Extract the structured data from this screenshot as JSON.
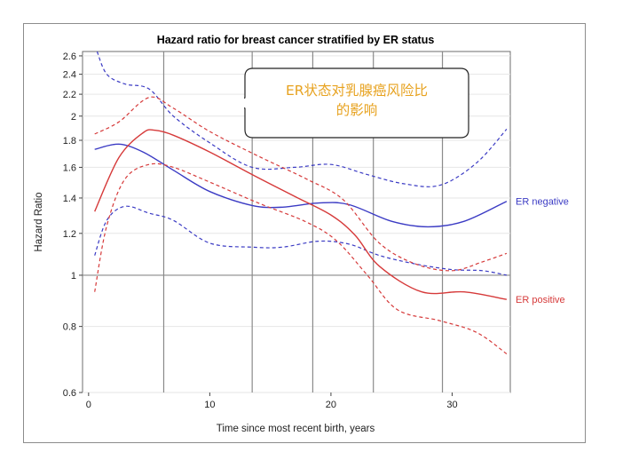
{
  "chart_data": {
    "type": "line",
    "title": "Hazard ratio for breast cancer stratified by ER status",
    "xlabel": "Time since most recent birth, years",
    "ylabel": "Hazard Ratio",
    "xlim": [
      -0.5,
      34.8
    ],
    "ylim": [
      0.6,
      2.65
    ],
    "y_scale": "log",
    "x_ticks": [
      0,
      10,
      20,
      30
    ],
    "x_tick_labels": [
      "0",
      "10",
      "20",
      "30"
    ],
    "y_ticks": [
      0.6,
      0.8,
      1,
      1.2,
      1.4,
      1.6,
      1.8,
      2,
      2.2,
      2.4,
      2.6
    ],
    "y_tick_labels": [
      "0.6",
      "0.8",
      "1",
      "1.2",
      "1.4",
      "1.6",
      "1.8",
      "2",
      "2.2",
      "2.4",
      "2.6"
    ],
    "vertical_reference_lines": [
      6.2,
      13.5,
      18.5,
      23.5,
      29.2
    ],
    "horizontal_reference_line": 1,
    "grid": true,
    "series": [
      {
        "name": "ER negative",
        "group": "ER negative",
        "role": "estimate",
        "color": "#3b3bc4",
        "dash": "solid",
        "x": [
          0.5,
          2.5,
          4.5,
          7,
          10,
          13.5,
          16,
          19,
          21.5,
          25,
          28,
          31,
          34.5
        ],
        "y": [
          1.73,
          1.77,
          1.71,
          1.58,
          1.44,
          1.355,
          1.345,
          1.37,
          1.36,
          1.265,
          1.235,
          1.265,
          1.38
        ]
      },
      {
        "group": "ER negative",
        "role": "upper",
        "color": "#3b3bc4",
        "dash": "dashed",
        "x": [
          0.7,
          1.5,
          3,
          5,
          7,
          10,
          13.5,
          17,
          20,
          23,
          26,
          29,
          32,
          34.5
        ],
        "y": [
          2.65,
          2.4,
          2.3,
          2.25,
          2.0,
          1.78,
          1.6,
          1.6,
          1.62,
          1.55,
          1.49,
          1.48,
          1.63,
          1.89
        ]
      },
      {
        "group": "ER negative",
        "role": "lower",
        "color": "#3b3bc4",
        "dash": "dashed",
        "x": [
          0.5,
          1.5,
          3,
          5,
          7,
          10,
          13.5,
          16,
          19,
          21.5,
          24,
          27,
          30,
          32.5,
          34.5
        ],
        "y": [
          1.09,
          1.27,
          1.35,
          1.31,
          1.27,
          1.15,
          1.13,
          1.13,
          1.16,
          1.145,
          1.09,
          1.05,
          1.025,
          1.02,
          1.0
        ]
      },
      {
        "name": "ER positive",
        "group": "ER positive",
        "role": "estimate",
        "color": "#d63a3a",
        "dash": "solid",
        "x": [
          0.5,
          2.5,
          4.5,
          5.5,
          7,
          10,
          13.5,
          17,
          20,
          22,
          24,
          27.5,
          31,
          34.5
        ],
        "y": [
          1.32,
          1.67,
          1.86,
          1.88,
          1.84,
          1.71,
          1.55,
          1.41,
          1.3,
          1.19,
          1.04,
          0.93,
          0.93,
          0.9
        ]
      },
      {
        "group": "ER positive",
        "role": "upper",
        "color": "#d63a3a",
        "dash": "dashed",
        "x": [
          0.5,
          2.5,
          5,
          7,
          10,
          14,
          18,
          21,
          24,
          27,
          30,
          32.5,
          34.5
        ],
        "y": [
          1.85,
          1.95,
          2.17,
          2.07,
          1.87,
          1.68,
          1.52,
          1.39,
          1.15,
          1.05,
          1.02,
          1.06,
          1.1
        ]
      },
      {
        "group": "ER positive",
        "role": "lower",
        "color": "#d63a3a",
        "dash": "dashed",
        "x": [
          0.5,
          1.5,
          3,
          5,
          7,
          10,
          14,
          18,
          20.5,
          23,
          25.5,
          29,
          32,
          34.5
        ],
        "y": [
          0.93,
          1.24,
          1.52,
          1.62,
          1.6,
          1.5,
          1.37,
          1.26,
          1.16,
          1.0,
          0.86,
          0.82,
          0.78,
          0.71
        ]
      }
    ]
  },
  "callout": {
    "line1": "ER状态对乳腺癌风险比",
    "line2": "的影响"
  }
}
